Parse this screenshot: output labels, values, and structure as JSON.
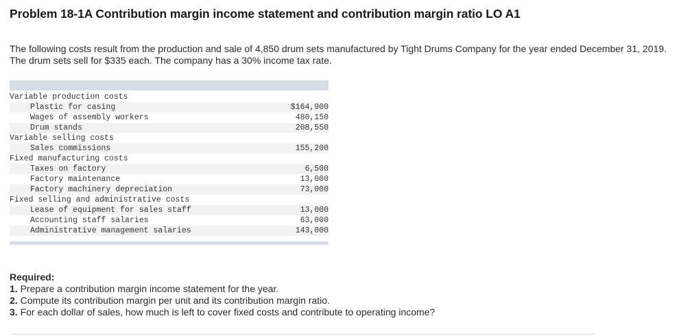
{
  "problem": {
    "title": "Problem 18-1A Contribution margin income statement and contribution margin ratio LO A1",
    "intro": "The following costs result from the production and sale of 4,850 drum sets manufactured by Tight Drums Company for the year ended December 31, 2019. The drum sets sell for $335 each. The company has a 30% income tax rate."
  },
  "cost_table": {
    "rows": [
      {
        "label": "Variable production costs",
        "amount": "",
        "indent": false
      },
      {
        "label": "Plastic for casing",
        "amount": "$164,900",
        "indent": true
      },
      {
        "label": "Wages of assembly workers",
        "amount": "480,150",
        "indent": true
      },
      {
        "label": "Drum stands",
        "amount": "208,550",
        "indent": true
      },
      {
        "label": "Variable selling costs",
        "amount": "",
        "indent": false
      },
      {
        "label": "Sales commissions",
        "amount": "155,200",
        "indent": true
      },
      {
        "label": "Fixed manufacturing costs",
        "amount": "",
        "indent": false
      },
      {
        "label": "Taxes on factory",
        "amount": "6,500",
        "indent": true
      },
      {
        "label": "Factory maintenance",
        "amount": "13,000",
        "indent": true
      },
      {
        "label": "Factory machinery depreciation",
        "amount": "73,000",
        "indent": true
      },
      {
        "label": "Fixed selling and administrative costs",
        "amount": "",
        "indent": false
      },
      {
        "label": "Lease of equipment for sales staff",
        "amount": "13,000",
        "indent": true
      },
      {
        "label": "Accounting staff salaries",
        "amount": "63,000",
        "indent": true
      },
      {
        "label": "Administrative management salaries",
        "amount": "143,000",
        "indent": true
      }
    ]
  },
  "required": {
    "heading": "Required:",
    "items": [
      {
        "num": "1.",
        "text": " Prepare a contribution margin income statement for the year."
      },
      {
        "num": "2.",
        "text": " Compute its contribution margin per unit and its contribution margin ratio."
      },
      {
        "num": "3.",
        "text": " For each dollar of sales, how much is left to cover fixed costs and contribute to operating income?"
      }
    ]
  },
  "colors": {
    "table_header": "#d6dde6",
    "row_stripe": "#f2f2f2",
    "text": "#222222"
  }
}
